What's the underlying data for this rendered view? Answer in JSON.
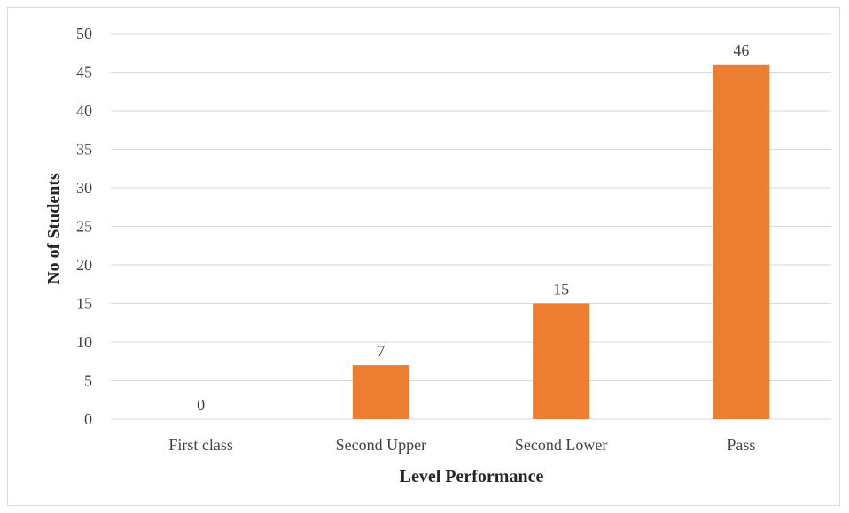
{
  "chart_data": {
    "type": "bar",
    "categories": [
      "First class",
      "Second Upper",
      "Second Lower",
      "Pass"
    ],
    "values": [
      0,
      7,
      15,
      46
    ],
    "data_labels": [
      "0",
      "7",
      "15",
      "46"
    ],
    "xlabel": "Level Performance",
    "ylabel": "No of Students",
    "ylim": [
      0,
      50
    ],
    "yticks": [
      "0",
      "5",
      "10",
      "15",
      "20",
      "25",
      "30",
      "35",
      "40",
      "45",
      "50"
    ],
    "grid": true,
    "legend": "none",
    "bar_color": "#ED7D31",
    "grid_color": "#D9D9D9"
  }
}
